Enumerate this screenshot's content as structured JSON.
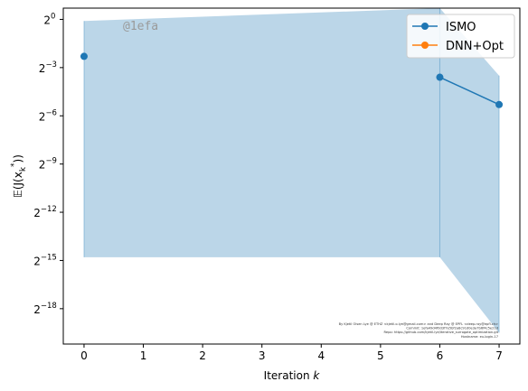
{
  "chart_data": {
    "type": "line",
    "xlabel": "Iteration",
    "xlabel_var": "k",
    "ylabel": "𝔼(J(x",
    "ylabel_sub": "k",
    "ylabel_sup": "*",
    "ylabel_tail": "))",
    "xlim": [
      -0.35,
      7.35
    ],
    "ylim_log2": [
      -20.2,
      0.7
    ],
    "y_scale": "log2",
    "x_ticks": [
      0,
      1,
      2,
      3,
      4,
      5,
      6,
      7
    ],
    "y_ticks_base": "2",
    "y_ticks_exp": [
      0,
      -3,
      -6,
      -9,
      -12,
      -15,
      -18
    ],
    "legend_position": "top-right",
    "series": [
      {
        "name": "ISMO",
        "color": "#1f77b4",
        "points": [
          {
            "x": 0,
            "y_log2": -2.3
          },
          {
            "x": 6,
            "y_log2": -3.6
          },
          {
            "x": 7,
            "y_log2": -5.3
          }
        ],
        "band": [
          {
            "x": 0,
            "lo_log2": -14.8,
            "hi_log2": -0.1
          },
          {
            "x": 6,
            "lo_log2": -14.8,
            "hi_log2": 0.7
          },
          {
            "x": 7,
            "lo_log2": -19.5,
            "hi_log2": -3.5
          }
        ]
      },
      {
        "name": "DNN+Opt",
        "color": "#ff7f0e",
        "points": [],
        "band": []
      }
    ],
    "watermark": "@1efa",
    "credit_lines": [
      "By Kjetil Olsen Lye @ ETHZ <kjetil.o.lye@gmail.com> and Deep Ray @ EPFL <deep.ray@epfl.ch>",
      "Commit: 1efa49d4f0d3f7e5bf2a8c91d0e3a7b6f4c5e21d",
      "Repo: https://github.com/kjetil-lye/iterative_surrogate_optimization.git",
      "Hostname: eu-login-17"
    ]
  }
}
